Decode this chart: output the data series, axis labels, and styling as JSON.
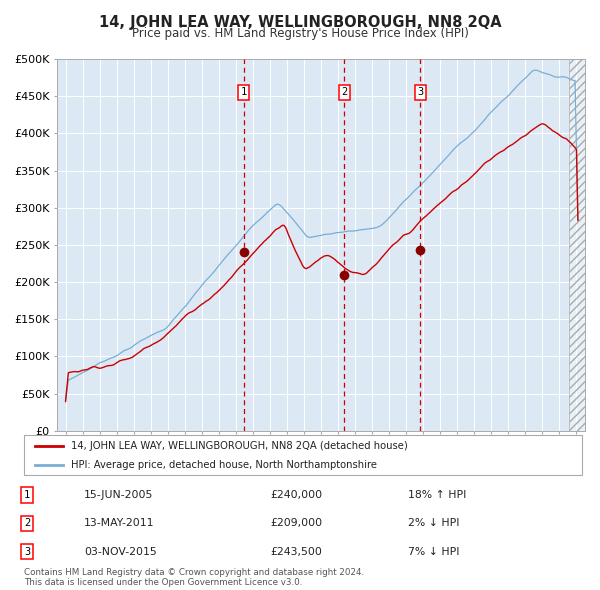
{
  "title": "14, JOHN LEA WAY, WELLINGBOROUGH, NN8 2QA",
  "subtitle": "Price paid vs. HM Land Registry's House Price Index (HPI)",
  "background_color": "#dce9f5",
  "grid_color": "#ffffff",
  "hpi_line_color": "#7aadd4",
  "price_line_color": "#cc0000",
  "sale_marker_color": "#880000",
  "dashed_line_color": "#cc0000",
  "transactions": [
    {
      "date_label": "15-JUN-2005",
      "date_x": 2005.46,
      "price": 240000,
      "hpi_pct": "18%",
      "hpi_dir": "↑",
      "label": "1"
    },
    {
      "date_label": "13-MAY-2011",
      "date_x": 2011.37,
      "price": 209000,
      "hpi_pct": "2%",
      "hpi_dir": "↓",
      "label": "2"
    },
    {
      "date_label": "03-NOV-2015",
      "date_x": 2015.84,
      "price": 243500,
      "hpi_pct": "7%",
      "hpi_dir": "↓",
      "label": "3"
    }
  ],
  "ylim": [
    0,
    500000
  ],
  "xlim": [
    1994.5,
    2025.5
  ],
  "yticks": [
    0,
    50000,
    100000,
    150000,
    200000,
    250000,
    300000,
    350000,
    400000,
    450000,
    500000
  ],
  "ytick_labels": [
    "£0",
    "£50K",
    "£100K",
    "£150K",
    "£200K",
    "£250K",
    "£300K",
    "£350K",
    "£400K",
    "£450K",
    "£500K"
  ],
  "xticks": [
    1995,
    1996,
    1997,
    1998,
    1999,
    2000,
    2001,
    2002,
    2003,
    2004,
    2005,
    2006,
    2007,
    2008,
    2009,
    2010,
    2011,
    2012,
    2013,
    2014,
    2015,
    2016,
    2017,
    2018,
    2019,
    2020,
    2021,
    2022,
    2023,
    2024,
    2025
  ],
  "legend_property_label": "14, JOHN LEA WAY, WELLINGBOROUGH, NN8 2QA (detached house)",
  "legend_hpi_label": "HPI: Average price, detached house, North Northamptonshire",
  "footer_text": "Contains HM Land Registry data © Crown copyright and database right 2024.\nThis data is licensed under the Open Government Licence v3.0.",
  "hatch_region_start": 2024.58,
  "hatch_region_end": 2025.5
}
